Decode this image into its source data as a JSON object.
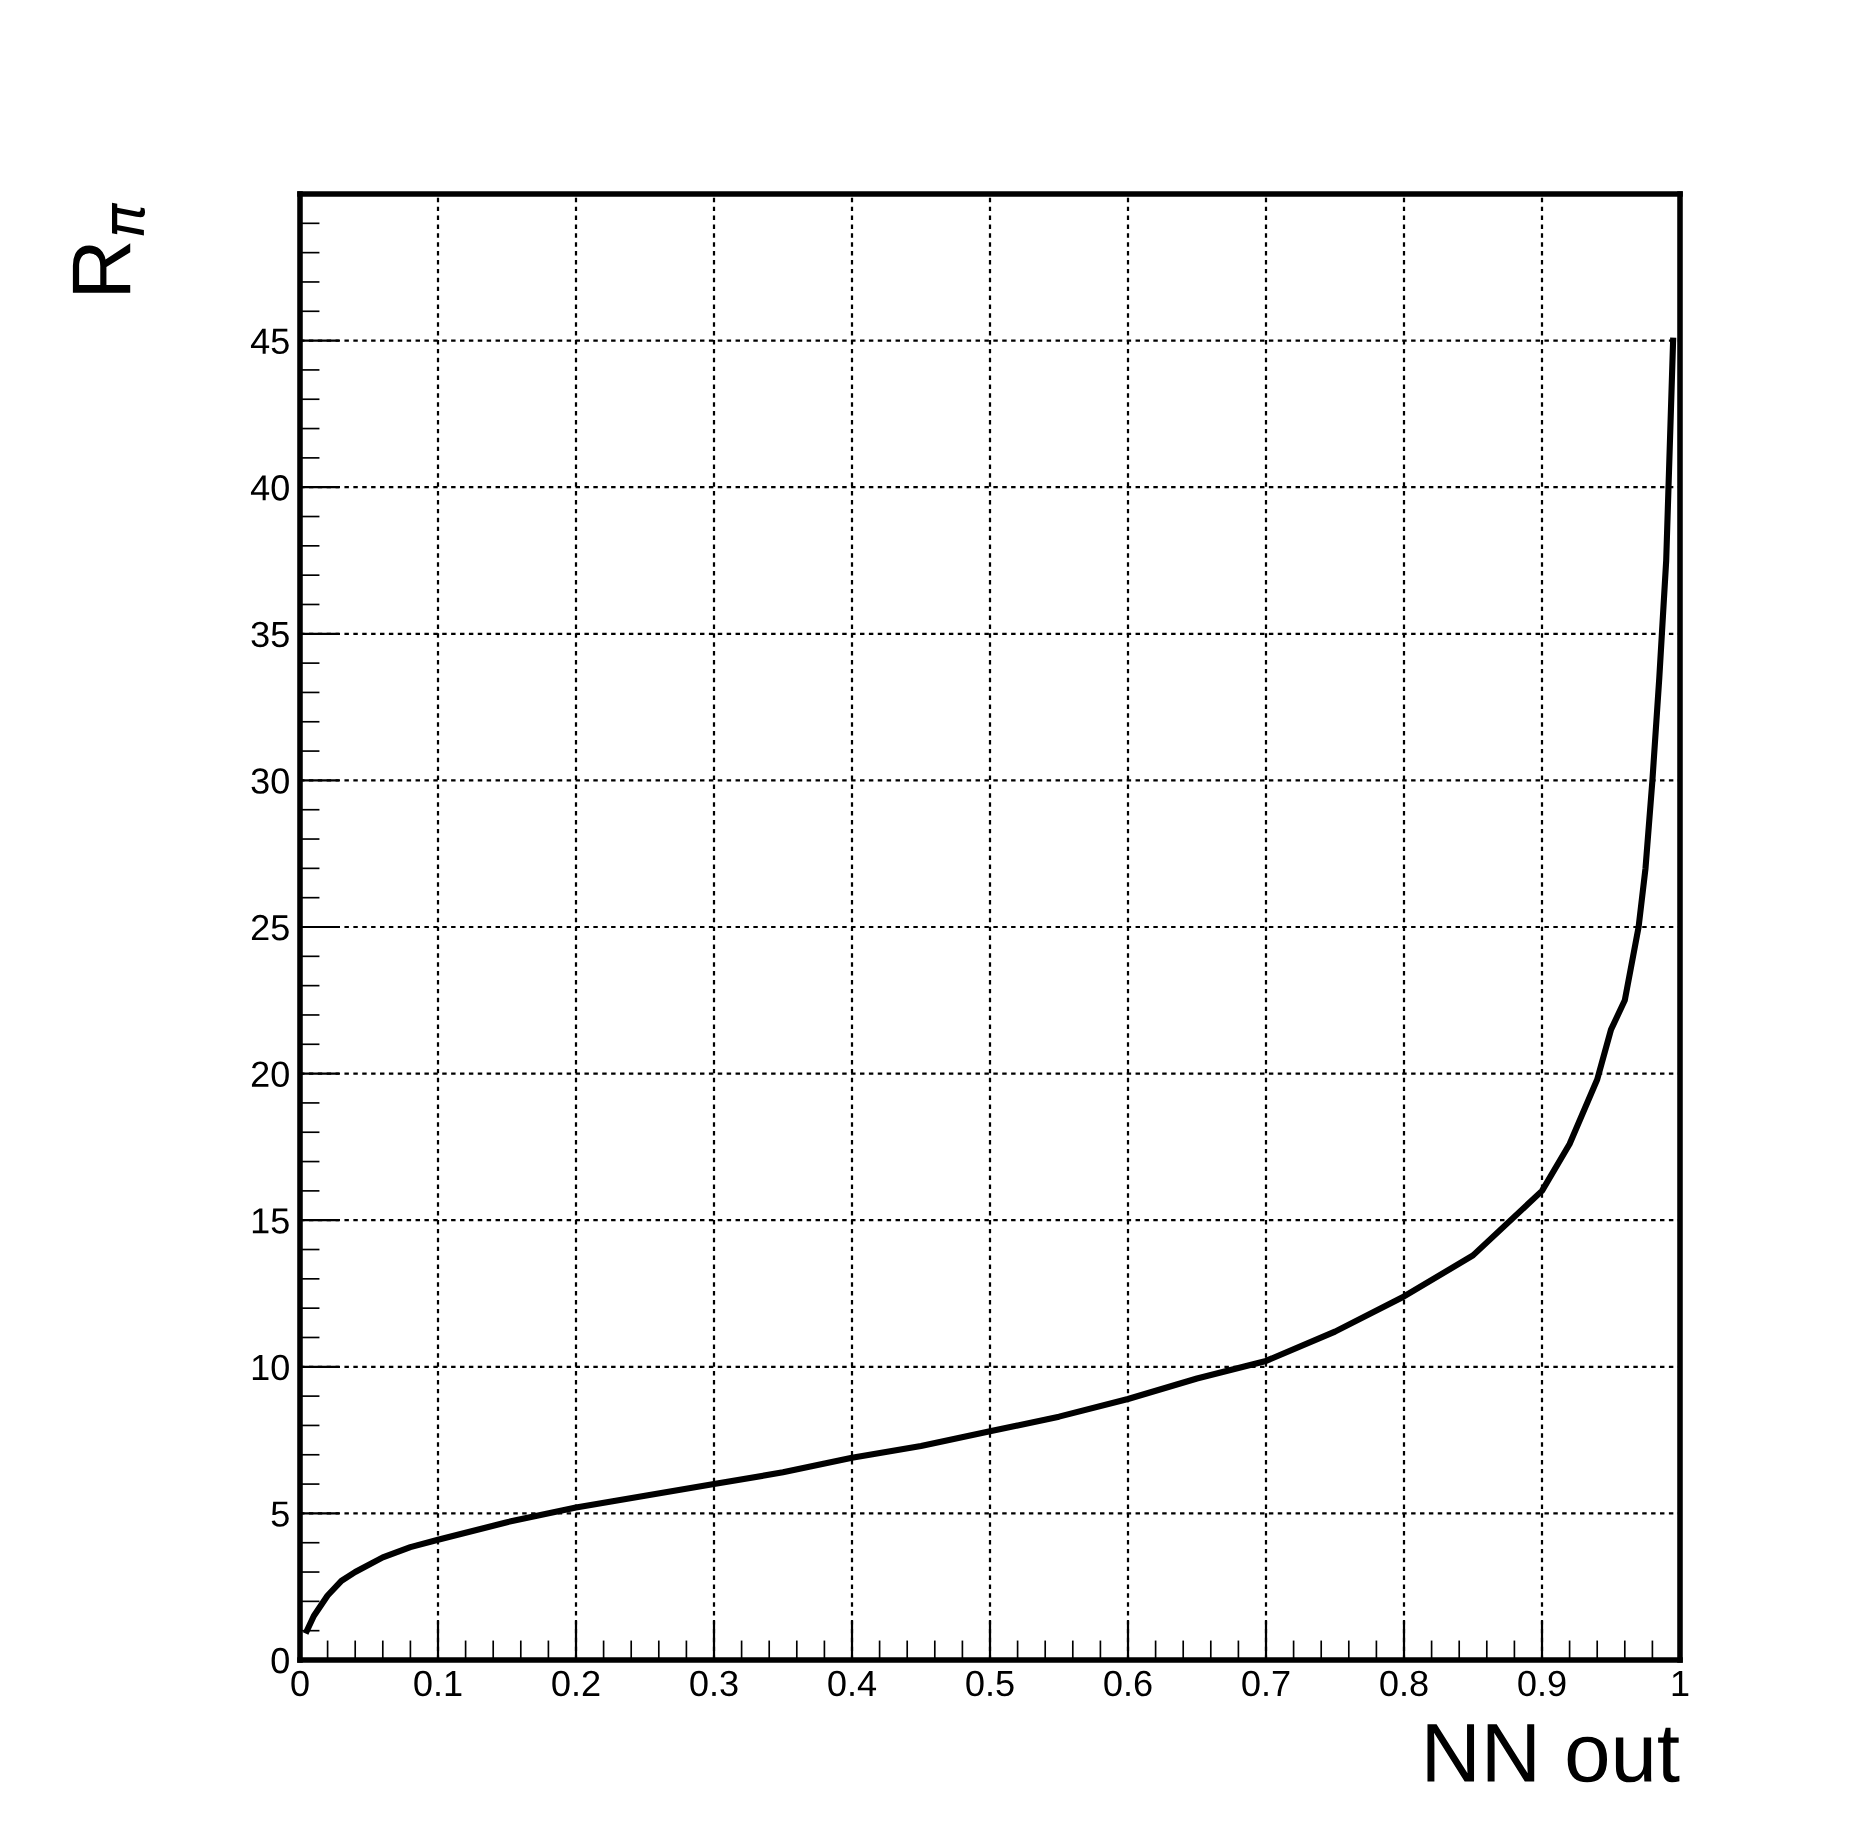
{
  "chart_data": {
    "type": "line",
    "xlabel": "NN out",
    "ylabel": "R$_{π}$",
    "x": [
      0.005,
      0.01,
      0.02,
      0.03,
      0.04,
      0.06,
      0.08,
      0.1,
      0.15,
      0.2,
      0.25,
      0.3,
      0.35,
      0.4,
      0.45,
      0.5,
      0.55,
      0.6,
      0.65,
      0.7,
      0.75,
      0.8,
      0.85,
      0.9,
      0.92,
      0.94,
      0.95,
      0.96,
      0.97,
      0.975,
      0.98,
      0.985,
      0.99,
      0.995
    ],
    "series": [
      {
        "color": "#000000",
        "values": [
          1,
          1.5,
          2.2,
          2.7,
          3.0,
          3.5,
          3.85,
          4.1,
          4.7,
          5.2,
          5.6,
          6.0,
          6.4,
          6.9,
          7.3,
          7.8,
          8.3,
          8.9,
          9.6,
          10.2,
          11.2,
          12.4,
          13.8,
          16.0,
          17.6,
          19.8,
          21.5,
          22.5,
          25,
          27,
          30,
          33.5,
          37.5,
          45
        ]
      }
    ],
    "xlim": [
      0,
      1
    ],
    "xticks": [
      0,
      0.1,
      0.2,
      0.3,
      0.4,
      0.5,
      0.6,
      0.7,
      0.8,
      0.9,
      1
    ],
    "ylim": [
      0,
      50
    ],
    "yticks": [
      0,
      5,
      10,
      15,
      20,
      25,
      30,
      35,
      40,
      45
    ],
    "grid": true,
    "line_style": "solid",
    "marker": "none",
    "legend": false
  }
}
